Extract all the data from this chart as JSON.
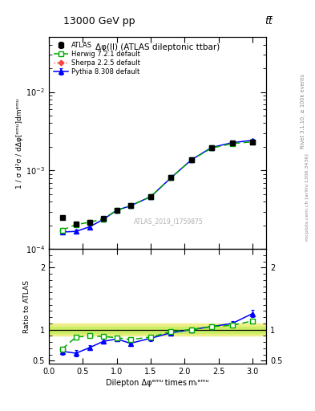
{
  "title_top": "13000 GeV pp",
  "title_right": "tt̅",
  "plot_title": "Δφ(ll) (ATLAS dileptonic ttbar)",
  "watermark": "ATLAS_2019_I1759875",
  "rivet_label": "Rivet 3.1.10, ≥ 100k events",
  "arxiv_label": "mcplots.cern.ch [arXiv:1306.3436]",
  "xlabel": "Dilepton Δφᵉᵐᵘ times mᵢᵉᵐᵘ",
  "ylabel": "1 / σ d²σ / dΔφ[ᵉᵐᵘ]dmᵉᵐᵘ",
  "ratio_ylabel": "Ratio to ATLAS",
  "x_atlas": [
    0.2,
    0.4,
    0.6,
    0.8,
    1.0,
    1.2,
    1.5,
    1.8,
    2.1,
    2.4,
    2.7,
    3.0
  ],
  "y_atlas": [
    0.000255,
    0.00021,
    0.00022,
    0.000245,
    0.000315,
    0.00036,
    0.00047,
    0.00082,
    0.00138,
    0.00197,
    0.00222,
    0.00232
  ],
  "y_atlas_err": [
    1.5e-05,
    1.2e-05,
    1.2e-05,
    1.2e-05,
    1.5e-05,
    1.8e-05,
    2.5e-05,
    4e-05,
    7e-05,
    9e-05,
    9e-05,
    0.0001
  ],
  "x_herwig": [
    0.2,
    0.4,
    0.6,
    0.8,
    1.0,
    1.2,
    1.5,
    1.8,
    2.1,
    2.4,
    2.7,
    3.0
  ],
  "y_herwig": [
    0.000175,
    0.000205,
    0.00022,
    0.000242,
    0.000312,
    0.000355,
    0.000465,
    0.00081,
    0.00137,
    0.00193,
    0.0022,
    0.00232
  ],
  "x_pythia": [
    0.2,
    0.4,
    0.6,
    0.8,
    1.0,
    1.2,
    1.5,
    1.8,
    2.1,
    2.4,
    2.7,
    3.0
  ],
  "y_pythia": [
    0.000165,
    0.000168,
    0.000192,
    0.000238,
    0.000312,
    0.000355,
    0.000465,
    0.00081,
    0.00137,
    0.00197,
    0.00226,
    0.00242
  ],
  "y_pythia_err": [
    8e-06,
    8e-06,
    8e-06,
    8e-06,
    1e-05,
    1.2e-05,
    1.8e-05,
    3.5e-05,
    5e-05,
    7e-05,
    8e-05,
    9e-05
  ],
  "x_sherpa": [
    0.2
  ],
  "y_sherpa": [
    0.000175
  ],
  "ratio_herwig_x": [
    0.2,
    0.4,
    0.6,
    0.8,
    1.0,
    1.2,
    1.5,
    1.8,
    2.1,
    2.4,
    2.7,
    3.0
  ],
  "ratio_herwig": [
    0.69,
    0.88,
    0.9,
    0.89,
    0.87,
    0.84,
    0.88,
    0.97,
    1.0,
    1.05,
    1.07,
    1.14
  ],
  "ratio_pythia_x": [
    0.2,
    0.4,
    0.6,
    0.8,
    1.0,
    1.2,
    1.5,
    1.8,
    2.1,
    2.4,
    2.7,
    3.0
  ],
  "ratio_pythia": [
    0.65,
    0.62,
    0.71,
    0.81,
    0.85,
    0.78,
    0.86,
    0.95,
    1.0,
    1.05,
    1.1,
    1.26
  ],
  "ratio_pythia_err": [
    0.05,
    0.05,
    0.04,
    0.04,
    0.04,
    0.04,
    0.04,
    0.04,
    0.04,
    0.04,
    0.04,
    0.06
  ],
  "ratio_sherpa_x": [
    0.2
  ],
  "ratio_sherpa": [
    0.69
  ],
  "atlas_band_lo": 0.9,
  "atlas_band_hi": 1.1,
  "atlas_band_inner_lo": 0.95,
  "atlas_band_inner_hi": 1.05,
  "color_atlas": "#000000",
  "color_herwig": "#00aa00",
  "color_pythia": "#0000ff",
  "color_sherpa": "#ff4444",
  "color_band_outer": "#eeee88",
  "color_band_inner": "#ccee66",
  "ylim_main": [
    0.0001,
    0.05
  ],
  "ylim_ratio": [
    0.45,
    2.3
  ],
  "xlim": [
    0.0,
    3.2
  ]
}
